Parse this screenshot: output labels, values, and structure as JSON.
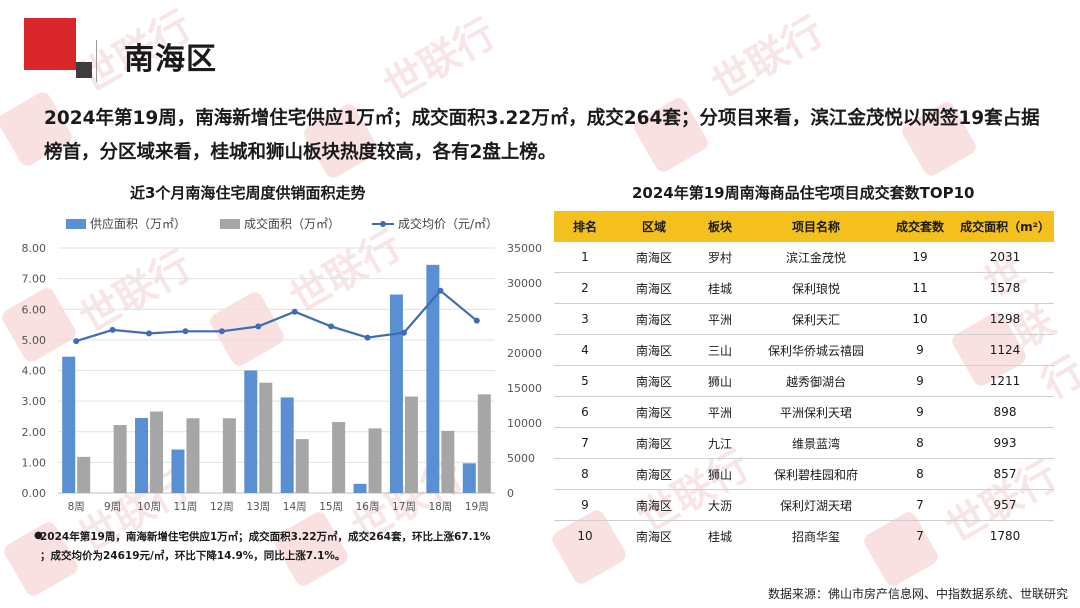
{
  "header": {
    "title": "南海区"
  },
  "summary": "2024年第19周，南海新增住宅供应1万㎡；成交面积3.22万㎡，成交264套；分项目来看，滨江金茂悦以网签19套占据榜首，分区域来看，桂城和狮山板块热度较高，各有2盘上榜。",
  "left_chart": {
    "title": "近3个月南海住宅周度供销面积走势"
  },
  "right_chart": {
    "title": "2024年第19周南海商品住宅项目成交套数TOP10"
  },
  "chart_data": [
    {
      "type": "bar",
      "title": "近3个月南海住宅周度供销面积走势",
      "categories": [
        "8周",
        "9周",
        "10周",
        "11周",
        "12周",
        "13周",
        "14周",
        "15周",
        "16周",
        "17周",
        "18周",
        "19周"
      ],
      "series": [
        {
          "name": "供应面积（万㎡）",
          "type": "bar",
          "axis": "left",
          "color": "#5b8fd4",
          "values": [
            4.45,
            0,
            2.45,
            1.42,
            0,
            4.0,
            3.12,
            0,
            0.3,
            6.48,
            7.45,
            0.97
          ]
        },
        {
          "name": "成交面积（万㎡）",
          "type": "bar",
          "axis": "left",
          "color": "#a6a6a6",
          "values": [
            1.18,
            2.22,
            2.66,
            2.44,
            2.44,
            3.6,
            1.76,
            2.32,
            2.11,
            3.15,
            2.03,
            3.22
          ]
        },
        {
          "name": "成交均价（元/㎡）",
          "type": "line",
          "axis": "right",
          "color": "#3f6db5",
          "values": [
            21700,
            23300,
            22800,
            23100,
            23100,
            23800,
            25900,
            23800,
            22200,
            22900,
            28900,
            24619
          ]
        }
      ],
      "y_left": {
        "min": 0,
        "max": 8,
        "ticks": [
          "0.00",
          "1.00",
          "2.00",
          "3.00",
          "4.00",
          "5.00",
          "6.00",
          "7.00",
          "8.00"
        ]
      },
      "y_right": {
        "min": 0,
        "max": 35000,
        "ticks": [
          "0",
          "5000",
          "10000",
          "15000",
          "20000",
          "25000",
          "30000",
          "35000"
        ]
      },
      "legend_position": "top",
      "grid": true
    },
    {
      "type": "table",
      "title": "2024年第19周南海商品住宅项目成交套数TOP10",
      "columns": [
        "排名",
        "区域",
        "板块",
        "项目名称",
        "成交套数",
        "成交面积（m²）"
      ],
      "rows": [
        [
          "1",
          "南海区",
          "罗村",
          "滨江金茂悦",
          "19",
          "2031"
        ],
        [
          "2",
          "南海区",
          "桂城",
          "保利琅悦",
          "11",
          "1578"
        ],
        [
          "3",
          "南海区",
          "平洲",
          "保利天汇",
          "10",
          "1298"
        ],
        [
          "4",
          "南海区",
          "三山",
          "保利华侨城云禧园",
          "9",
          "1124"
        ],
        [
          "5",
          "南海区",
          "狮山",
          "越秀御湖台",
          "9",
          "1211"
        ],
        [
          "6",
          "南海区",
          "平洲",
          "平洲保利天珺",
          "9",
          "898"
        ],
        [
          "7",
          "南海区",
          "九江",
          "维景蓝湾",
          "8",
          "993"
        ],
        [
          "8",
          "南海区",
          "狮山",
          "保利碧桂园和府",
          "8",
          "857"
        ],
        [
          "9",
          "南海区",
          "大沥",
          "保利灯湖天珺",
          "7",
          "957"
        ],
        [
          "10",
          "南海区",
          "桂城",
          "招商华玺",
          "7",
          "1780"
        ]
      ],
      "header_color": "#f3c01d"
    }
  ],
  "note": {
    "line1": "2024年第19周，南海新增住宅供应1万㎡；成交面积3.22万㎡，成交264套，环比上涨67.1%",
    "line2": "；成交均价为24619元/㎡，环比下降14.9%，同比上涨7.1%。"
  },
  "source": "数据来源：佛山市房产信息网、中指数据系统、世联研究",
  "watermark": "世联行",
  "colors": {
    "accent_red": "#d9262b",
    "supply_bar": "#5b8fd4",
    "deal_bar": "#a6a6a6",
    "price_line": "#3f6db5",
    "table_header": "#f3c01d"
  }
}
